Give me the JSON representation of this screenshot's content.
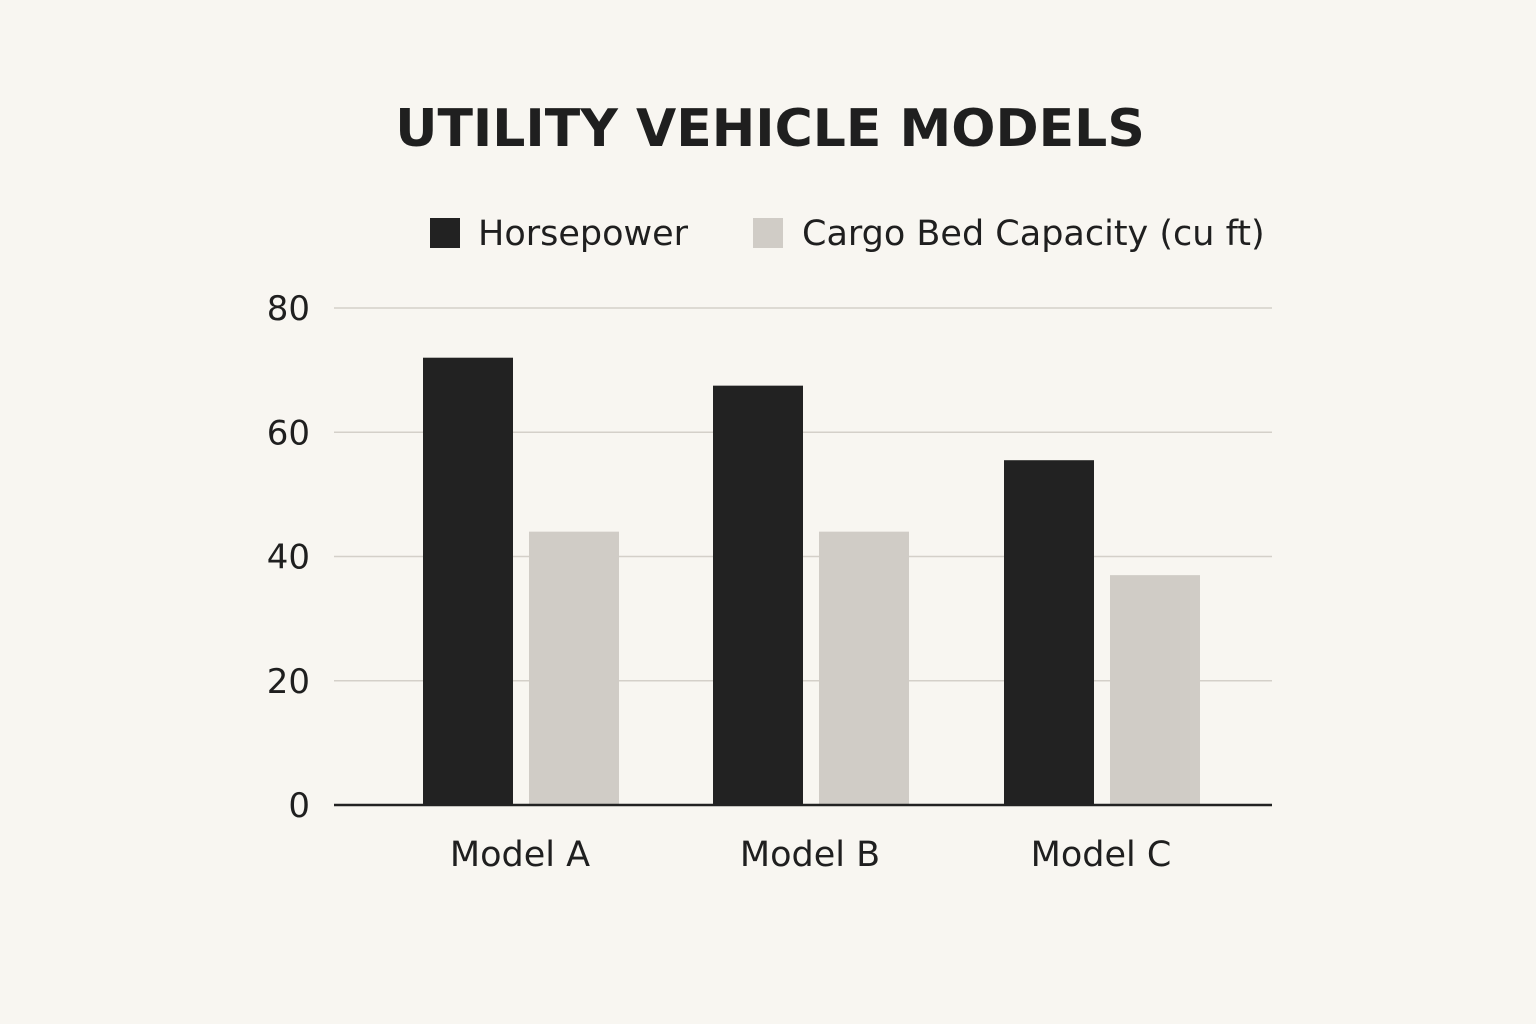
{
  "chart_data": {
    "type": "bar",
    "title": "UTILITY VEHICLE MODELS",
    "categories": [
      "Model A",
      "Model B",
      "Model C"
    ],
    "series": [
      {
        "name": "Horsepower",
        "color": "#222222",
        "values": [
          72,
          67.5,
          55.5
        ]
      },
      {
        "name": "Cargo Bed Capacity (cu ft)",
        "color": "#d0ccc6",
        "values": [
          44,
          44,
          37
        ]
      }
    ],
    "xlabel": "",
    "ylabel": "",
    "ylim": [
      0,
      80
    ],
    "yticks": [
      "0",
      "20",
      "40",
      "60",
      "80"
    ],
    "grid": true,
    "legend_position": "top"
  },
  "colors": {
    "background": "#f8f6f1",
    "text": "#1f1f1f",
    "grid": "#d4d0c9",
    "axis": "#222222"
  }
}
